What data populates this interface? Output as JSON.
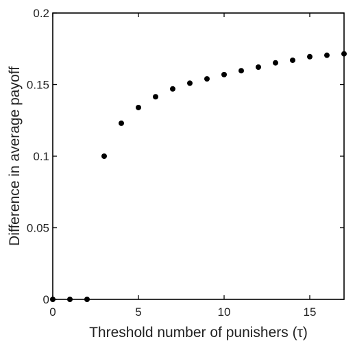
{
  "chart_data": {
    "type": "scatter",
    "xlabel": "Threshold number of punishers (τ)",
    "ylabel": "Difference in average payoff",
    "xlim": [
      0,
      17
    ],
    "ylim": [
      0,
      0.2
    ],
    "x_ticks": [
      0,
      5,
      10,
      15
    ],
    "x_tick_labels": [
      "0",
      "5",
      "10",
      "15"
    ],
    "y_ticks": [
      0,
      0.05,
      0.1,
      0.15,
      0.2
    ],
    "y_tick_labels": [
      "0",
      "0.05",
      "0.1",
      "0.15",
      "0.2"
    ],
    "grid": false,
    "marker_color": "#000000",
    "x": [
      0,
      1,
      2,
      3,
      4,
      5,
      6,
      7,
      8,
      9,
      10,
      11,
      12,
      13,
      14,
      15,
      16,
      17
    ],
    "y": [
      0,
      0,
      0,
      0.1,
      0.123,
      0.134,
      0.1415,
      0.147,
      0.151,
      0.154,
      0.157,
      0.1597,
      0.1622,
      0.1652,
      0.167,
      0.1695,
      0.1705,
      0.1715
    ]
  }
}
